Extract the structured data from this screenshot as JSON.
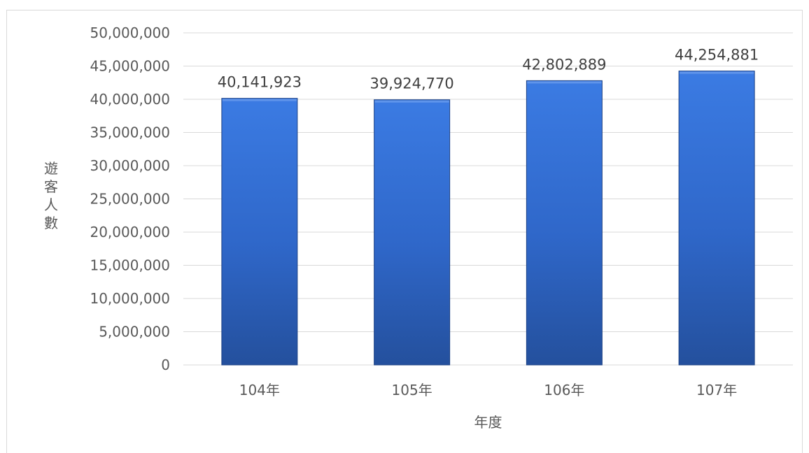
{
  "chart_data": {
    "type": "bar",
    "title": "",
    "categories": [
      "104年",
      "105年",
      "106年",
      "107年"
    ],
    "values": [
      40141923,
      39924770,
      42802889,
      44254881
    ],
    "data_labels": [
      "40,141,923",
      "39,924,770",
      "42,802,889",
      "44,254,881"
    ],
    "xlabel": "年度",
    "ylabel": "遊客人數",
    "ylim": [
      0,
      50000000
    ],
    "yticks": [
      0,
      5000000,
      10000000,
      15000000,
      20000000,
      25000000,
      30000000,
      35000000,
      40000000,
      45000000,
      50000000
    ],
    "ytick_labels": [
      "0",
      "5,000,000",
      "10,000,000",
      "15,000,000",
      "20,000,000",
      "25,000,000",
      "30,000,000",
      "35,000,000",
      "40,000,000",
      "45,000,000",
      "50,000,000"
    ],
    "grid": true,
    "legend": "none",
    "colors": {
      "bar_top": "#3b7be3",
      "bar_mid": "#2f67c9",
      "bar_bottom": "#24509d",
      "bar_edge": "#1d4285",
      "grid": "#d9d9d9",
      "text": "#595959"
    }
  }
}
